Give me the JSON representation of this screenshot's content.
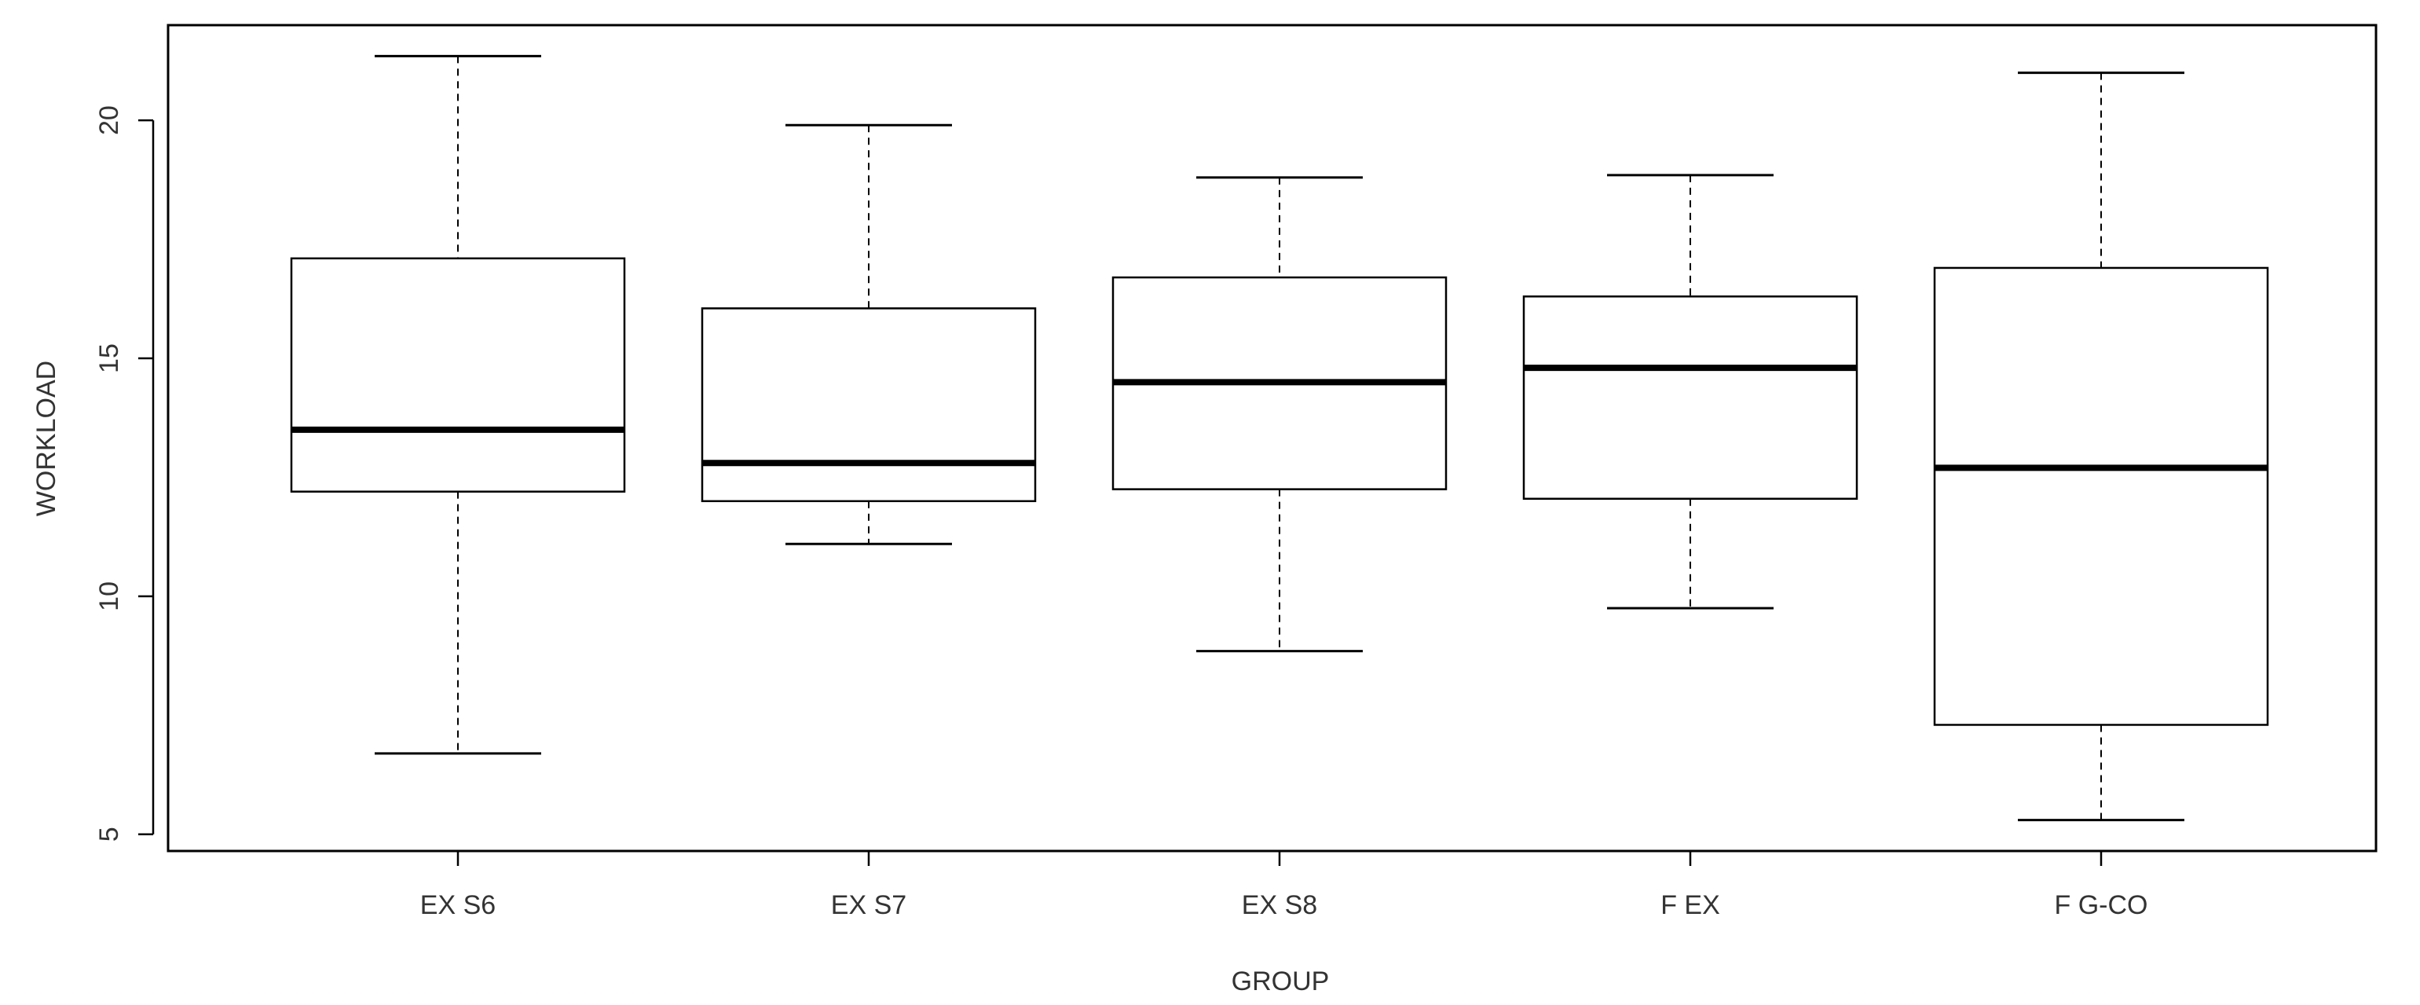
{
  "chart_data": {
    "type": "boxplot",
    "xlabel": "GROUP",
    "ylabel": "WORKLOAD",
    "ylim": [
      4.65,
      22.0
    ],
    "yticks": [
      5,
      10,
      15,
      20
    ],
    "grid": false,
    "categories": [
      "EX S6",
      "EX S7",
      "EX S8",
      "F EX",
      "F G-CO"
    ],
    "boxes": [
      {
        "label": "EX S6",
        "min": 6.7,
        "q1": 12.2,
        "median": 13.5,
        "q3": 17.1,
        "max": 21.35
      },
      {
        "label": "EX S7",
        "min": 11.1,
        "q1": 12.0,
        "median": 12.8,
        "q3": 16.05,
        "max": 19.9
      },
      {
        "label": "EX S8",
        "min": 8.85,
        "q1": 12.25,
        "median": 14.5,
        "q3": 16.7,
        "max": 18.8
      },
      {
        "label": "F EX",
        "min": 9.75,
        "q1": 12.05,
        "median": 14.8,
        "q3": 16.3,
        "max": 18.85
      },
      {
        "label": "F G-CO",
        "min": 5.3,
        "q1": 7.3,
        "median": 12.7,
        "q3": 16.9,
        "max": 21.0
      }
    ],
    "colors": {
      "box_fill": "#ffffff",
      "stroke": "#000000",
      "text": "#333333"
    }
  }
}
